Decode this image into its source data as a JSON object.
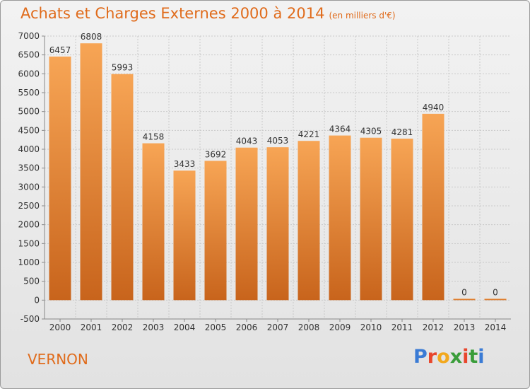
{
  "title": "Achats et Charges Externes 2000 à 2014",
  "subtitle": "(en milliers d'€)",
  "location": "VERNON",
  "logo_text": "Proxiti",
  "logo_colors": [
    "#3a7bd5",
    "#e8462c",
    "#f2a81d",
    "#3a9d3a",
    "#e8462c",
    "#3a9d3a",
    "#3a7bd5"
  ],
  "colors": {
    "bar_light": "#f7a555",
    "bar_dark": "#c8641c",
    "title": "#e06b1b",
    "grid": "#c9c9c9"
  },
  "chart_data": {
    "type": "bar",
    "title": "Achats et Charges Externes 2000 à 2014",
    "subtitle": "(en milliers d'€)",
    "categories": [
      "2000",
      "2001",
      "2002",
      "2003",
      "2004",
      "2005",
      "2006",
      "2007",
      "2008",
      "2009",
      "2010",
      "2011",
      "2012",
      "2013",
      "2014"
    ],
    "values": [
      6457,
      6808,
      5993,
      4158,
      3433,
      3692,
      4043,
      4053,
      4221,
      4364,
      4305,
      4281,
      4940,
      0,
      0
    ],
    "ylim": [
      -500,
      7000
    ],
    "yticks": [
      -500,
      0,
      500,
      1000,
      1500,
      2000,
      2500,
      3000,
      3500,
      4000,
      4500,
      5000,
      5500,
      6000,
      6500,
      7000
    ],
    "grid": true,
    "data_labels": true
  }
}
